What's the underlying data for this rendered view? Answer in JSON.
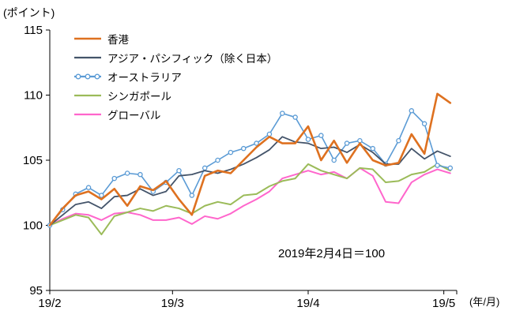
{
  "chart_data": {
    "type": "line",
    "title": "",
    "y_axis_label": "(ポイント)",
    "x_axis_label": "(年/月)",
    "annotation": "2019年2月4日＝100",
    "ylim": [
      95,
      115
    ],
    "xlim": [
      0,
      63
    ],
    "y_ticks": [
      95,
      100,
      105,
      110,
      115
    ],
    "x_ticks": [
      {
        "x": 0,
        "label": "19/2"
      },
      {
        "x": 19,
        "label": "19/3"
      },
      {
        "x": 40,
        "label": "19/4"
      },
      {
        "x": 61,
        "label": "19/5"
      }
    ],
    "grid": false,
    "legend_position": "top-left-inside",
    "x": [
      0,
      2,
      4,
      6,
      8,
      10,
      12,
      14,
      16,
      18,
      20,
      22,
      24,
      26,
      28,
      30,
      32,
      34,
      36,
      38,
      40,
      42,
      44,
      46,
      48,
      50,
      52,
      54,
      56,
      58,
      60,
      62
    ],
    "series": [
      {
        "id": "hong-kong",
        "name": "香港",
        "color": "#DE7120",
        "marker": "none",
        "line_width": 2.6,
        "values": [
          100,
          101.3,
          102.3,
          102.6,
          102.0,
          102.8,
          101.5,
          103.0,
          102.7,
          103.4,
          102.0,
          100.8,
          103.8,
          104.2,
          104.0,
          105.0,
          106.0,
          106.8,
          106.3,
          106.3,
          107.6,
          105.0,
          106.5,
          104.8,
          106.3,
          105.0,
          104.6,
          104.8,
          107.0,
          105.5,
          110.1,
          109.4
        ]
      },
      {
        "id": "asia-pacific-ex-japan",
        "name": "アジア・パシフィック（除く日本）",
        "color": "#44546A",
        "marker": "none",
        "line_width": 1.8,
        "values": [
          100,
          100.8,
          101.6,
          101.8,
          101.3,
          102.2,
          102.3,
          102.8,
          102.3,
          102.6,
          103.8,
          103.9,
          104.2,
          104.0,
          104.3,
          104.7,
          105.2,
          105.8,
          106.8,
          106.4,
          106.3,
          105.9,
          106.0,
          105.6,
          106.2,
          105.6,
          104.7,
          104.7,
          105.9,
          105.1,
          105.7,
          105.3
        ]
      },
      {
        "id": "australia",
        "name": "オーストラリア",
        "color": "#5B9BD5",
        "marker": "circle",
        "line_width": 1.6,
        "values": [
          100,
          101.2,
          102.4,
          102.9,
          102.3,
          103.6,
          104.0,
          103.9,
          102.6,
          103.3,
          104.2,
          102.3,
          104.4,
          105.0,
          105.6,
          105.9,
          106.3,
          107.0,
          108.6,
          108.3,
          106.6,
          106.9,
          105.0,
          106.3,
          106.5,
          105.9,
          104.7,
          106.5,
          108.8,
          107.8,
          104.6,
          104.4
        ]
      },
      {
        "id": "singapore",
        "name": "シンガポール",
        "color": "#9BBB59",
        "marker": "none",
        "line_width": 2.0,
        "values": [
          100,
          100.4,
          100.8,
          100.6,
          99.3,
          100.7,
          101.0,
          101.3,
          101.1,
          101.5,
          101.3,
          100.9,
          101.5,
          101.8,
          101.6,
          102.3,
          102.4,
          103.0,
          103.4,
          103.6,
          104.7,
          104.2,
          103.9,
          103.6,
          104.4,
          104.3,
          103.3,
          103.4,
          103.9,
          104.1,
          104.7,
          104.2
        ]
      },
      {
        "id": "global",
        "name": "グローバル",
        "color": "#FF66CC",
        "marker": "none",
        "line_width": 2.0,
        "values": [
          100,
          100.5,
          100.9,
          100.8,
          100.4,
          100.9,
          101.0,
          100.8,
          100.4,
          100.4,
          100.6,
          100.1,
          100.7,
          100.5,
          100.9,
          101.5,
          102.0,
          102.6,
          103.6,
          103.9,
          104.2,
          103.9,
          104.1,
          103.6,
          104.4,
          103.8,
          101.8,
          101.7,
          103.3,
          103.9,
          104.3,
          104.0
        ]
      }
    ]
  }
}
